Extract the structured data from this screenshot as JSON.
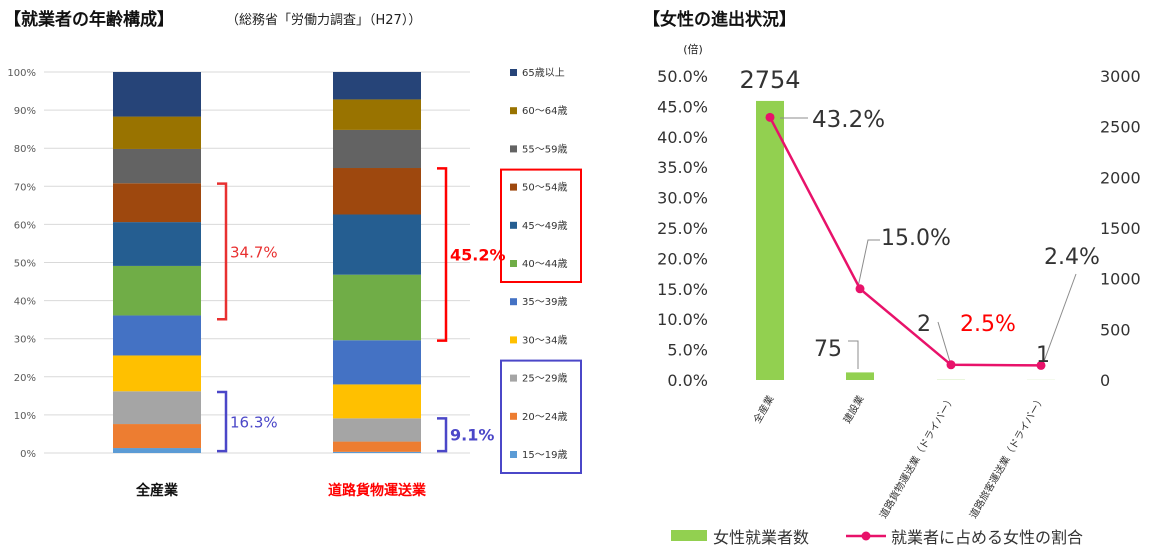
{
  "left": {
    "title": "【就業者の年齢構成】",
    "subtitle": "（総務省「労働力調査」（H27））"
  },
  "right": {
    "title": "【女性の進出状況】",
    "unit_label": "(倍)"
  },
  "chart_data": [
    {
      "type": "bar",
      "stacked": true,
      "title": "【就業者の年齢構成】",
      "subtitle": "（総務省「労働力調査」（H27））",
      "categories": [
        "全産業",
        "道路貨物運送業"
      ],
      "category_colors": [
        "#111111",
        "#ff0000"
      ],
      "y_ticks": [
        "0%",
        "10%",
        "20%",
        "30%",
        "40%",
        "50%",
        "60%",
        "70%",
        "80%",
        "90%",
        "100%"
      ],
      "ylim": [
        0,
        100
      ],
      "series": [
        {
          "name": "15～19歳",
          "color": "#5b9bd5",
          "values": [
            1.3,
            0.3
          ]
        },
        {
          "name": "20～24歳",
          "color": "#ed7d31",
          "values": [
            6.3,
            2.7
          ]
        },
        {
          "name": "25～29歳",
          "color": "#a5a5a5",
          "values": [
            8.6,
            6.1
          ]
        },
        {
          "name": "30～34歳",
          "color": "#ffc000",
          "values": [
            9.4,
            8.9
          ]
        },
        {
          "name": "35～39歳",
          "color": "#4472c4",
          "values": [
            10.5,
            11.6
          ]
        },
        {
          "name": "40～44歳",
          "color": "#70ad47",
          "values": [
            13.0,
            17.2
          ]
        },
        {
          "name": "45～49歳",
          "color": "#255e91",
          "values": [
            11.5,
            15.8
          ]
        },
        {
          "name": "50～54歳",
          "color": "#9e480e",
          "values": [
            10.2,
            12.2
          ]
        },
        {
          "name": "55～59歳",
          "color": "#636363",
          "values": [
            9.0,
            10.0
          ]
        },
        {
          "name": "60～64歳",
          "color": "#997300",
          "values": [
            8.5,
            8.0
          ]
        },
        {
          "name": "65歳以上",
          "color": "#264478",
          "values": [
            11.7,
            7.2
          ]
        }
      ],
      "annotations": [
        {
          "text": "34.7%",
          "category": "全産業",
          "from": 35.1,
          "to": 70.7,
          "color": "#e83030"
        },
        {
          "text": "16.3%",
          "category": "全産業",
          "from": 0.5,
          "to": 16.0,
          "color": "#4b47c8"
        },
        {
          "text": "45.2%",
          "category": "道路貨物運送業",
          "from": 29.5,
          "to": 74.7,
          "color": "#ff0000"
        },
        {
          "text": "9.1%",
          "category": "道路貨物運送業",
          "from": 0.5,
          "to": 9.1,
          "color": "#4b47c8"
        }
      ],
      "legend_highlights": [
        {
          "entries": [
            "50～54歳",
            "45～49歳",
            "40～44歳"
          ],
          "color": "#ff0000"
        },
        {
          "entries": [
            "25～29歳",
            "20～24歳",
            "15～19歳"
          ],
          "color": "#4b47c8"
        }
      ],
      "legend_position": "right"
    },
    {
      "type": "bar+line",
      "title": "【女性の進出状況】",
      "categories": [
        "全産業",
        "建設業",
        "道路貨物運送業（ドライバー）",
        "道路旅客運送業（ドライバー）"
      ],
      "bar_series": {
        "name": "女性就業者数",
        "color": "#92d050",
        "values": [
          2754,
          75,
          2,
          1
        ],
        "axis": "right"
      },
      "line_series": {
        "name": "就業者に占める女性の割合",
        "color": "#e8126a",
        "values": [
          43.2,
          15.0,
          2.5,
          2.4
        ],
        "axis": "left"
      },
      "bar_labels": [
        "2754",
        "75",
        "2",
        "1"
      ],
      "line_labels": [
        "43.2%",
        "15.0%",
        "2.5%",
        "2.4%"
      ],
      "line_label_colors": [
        "#333333",
        "#333333",
        "#ff0000",
        "#333333"
      ],
      "y_left_ticks": [
        "0.0%",
        "5.0%",
        "10.0%",
        "15.0%",
        "20.0%",
        "25.0%",
        "30.0%",
        "35.0%",
        "40.0%",
        "45.0%",
        "50.0%"
      ],
      "ylim_left": [
        0,
        50
      ],
      "y_right_ticks": [
        "0",
        "500",
        "1000",
        "1500",
        "2000",
        "2500",
        "3000"
      ],
      "ylim_right": [
        0,
        3000
      ],
      "y_right_unit": "(倍)",
      "legend_position": "bottom"
    }
  ]
}
